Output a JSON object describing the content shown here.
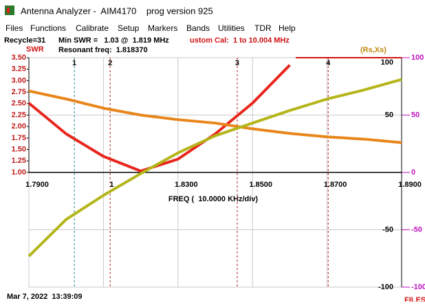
{
  "window": {
    "title": "Antenna Analyzer -  AIM4170    prog version 925"
  },
  "menu": [
    "Files",
    "Functions",
    "Calibrate",
    "Setup",
    "Markers",
    "Bands",
    "Utilities",
    "TDR",
    "Help"
  ],
  "info": {
    "recycle": "Recycle=31",
    "min_swr": "Min SWR =   1.03 @  1.819 MHz",
    "cal": "ustom Cal:  1 to 10.004 MHz",
    "resonant": "Resonant freq:  1.818370",
    "left_axis_label": "SWR",
    "right_axis_label": "(Rs,Xs)"
  },
  "chart_data": {
    "type": "line",
    "x_label": "FREQ (  10.0000 KHz/div)",
    "x": [
      1.79,
      1.8,
      1.81,
      1.82,
      1.83,
      1.84,
      1.85,
      1.86,
      1.87,
      1.88,
      1.89
    ],
    "xlim": [
      1.79,
      1.89
    ],
    "xticks": [
      {
        "value": 1.79,
        "label": "1.7900"
      },
      {
        "value": 1.81,
        "label": "1"
      },
      {
        "value": 1.83,
        "label": "1.8300"
      },
      {
        "value": 1.85,
        "label": "1.8500"
      },
      {
        "value": 1.87,
        "label": "1.8700"
      },
      {
        "value": 1.89,
        "label": "1.8900"
      }
    ],
    "ylim": [
      1,
      3.5
    ],
    "yticks": [
      {
        "value": 3.5,
        "label": "3.50"
      },
      {
        "value": 3.25,
        "label": "3.25"
      },
      {
        "value": 3,
        "label": "3.00"
      },
      {
        "value": 2.75,
        "label": "2.75"
      },
      {
        "value": 2.5,
        "label": "2.50"
      },
      {
        "value": 2.25,
        "label": "2.25"
      },
      {
        "value": 2,
        "label": "2.00"
      },
      {
        "value": 1.75,
        "label": "1.75"
      },
      {
        "value": 1.5,
        "label": "1.50"
      },
      {
        "value": 1.25,
        "label": "1.25"
      },
      {
        "value": 1,
        "label": "1.00"
      }
    ],
    "y2lim": [
      -100,
      100
    ],
    "y2ticks": [
      100,
      50,
      0,
      -50,
      -100
    ],
    "series": [
      {
        "name": "SWR",
        "color": "#e8261c",
        "values": [
          2.51,
          1.84,
          1.35,
          1.03,
          1.29,
          1.84,
          2.51,
          3.34,
          null,
          null,
          null
        ]
      },
      {
        "color": "#e8861c",
        "axis": "y2",
        "values": [
          71,
          64,
          56,
          50,
          46,
          43,
          38,
          34,
          31,
          29,
          26
        ]
      },
      {
        "color": "#b5b51a",
        "axis": "y2",
        "values": [
          -73,
          -41,
          -20,
          -1,
          17,
          32,
          43,
          54,
          64,
          72,
          81
        ]
      }
    ],
    "markers": [
      {
        "label": "1",
        "value": 1.8022,
        "color": "#1a8a8a"
      },
      {
        "label": "2",
        "value": 1.8118,
        "color": "#b01818"
      },
      {
        "label": "3",
        "value": 1.8459,
        "color": "#b01818"
      },
      {
        "label": "4",
        "value": 1.8703,
        "color": "#b01818"
      }
    ],
    "grid": true
  },
  "footer": {
    "timestamp": "Mar 7, 2022  13:39:09",
    "files": "FILES"
  }
}
